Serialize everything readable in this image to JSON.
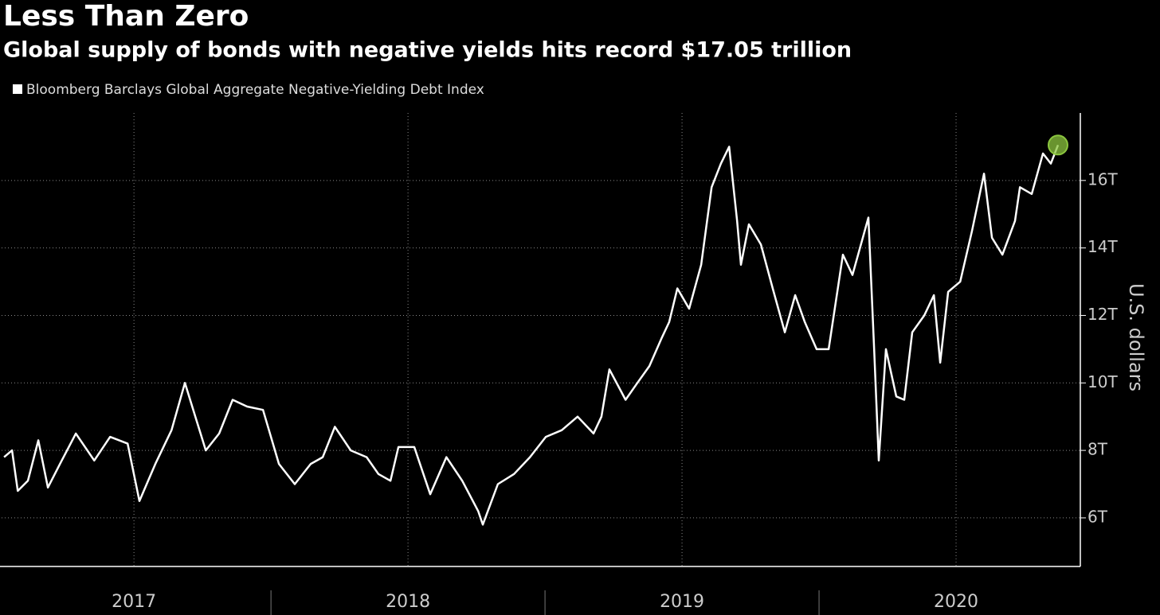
{
  "chart_data": {
    "type": "line",
    "title": "Less Than Zero",
    "subtitle": "Global supply of bonds with negative yields hits record $17.05 trillion",
    "y_label": "U.S. dollars",
    "x": [
      2017.026,
      2017.055,
      2017.076,
      2017.113,
      2017.151,
      2017.186,
      2017.23,
      2017.288,
      2017.355,
      2017.413,
      2017.477,
      2017.52,
      2017.578,
      2017.637,
      2017.686,
      2017.724,
      2017.762,
      2017.811,
      2017.86,
      2017.913,
      2017.971,
      2018.029,
      2018.087,
      2018.145,
      2018.189,
      2018.233,
      2018.291,
      2018.349,
      2018.392,
      2018.436,
      2018.465,
      2018.523,
      2018.581,
      2018.64,
      2018.698,
      2018.756,
      2018.773,
      2018.828,
      2018.887,
      2018.945,
      2019.003,
      2019.061,
      2019.119,
      2019.177,
      2019.206,
      2019.235,
      2019.294,
      2019.337,
      2019.381,
      2019.424,
      2019.453,
      2019.483,
      2019.526,
      2019.57,
      2019.608,
      2019.642,
      2019.672,
      2019.701,
      2019.715,
      2019.744,
      2019.788,
      2019.831,
      2019.875,
      2019.913,
      2019.948,
      2019.991,
      2020.035,
      2020.087,
      2020.122,
      2020.18,
      2020.201,
      2020.218,
      2020.244,
      2020.282,
      2020.311,
      2020.34,
      2020.384,
      2020.419,
      2020.442,
      2020.471,
      2020.515,
      2020.558,
      2020.602,
      2020.631,
      2020.669,
      2020.715,
      2020.733,
      2020.776,
      2020.817,
      2020.846,
      2020.872
    ],
    "series": [
      {
        "name": "Bloomberg Barclays Global Aggregate Negative-Yielding Debt Index",
        "color": "#ffffff",
        "values": [
          7.8,
          8.0,
          6.8,
          7.1,
          8.3,
          6.9,
          7.6,
          8.5,
          7.7,
          8.4,
          8.2,
          6.5,
          7.6,
          8.6,
          10.0,
          9.0,
          8.0,
          8.5,
          9.5,
          9.3,
          9.2,
          7.6,
          7.0,
          7.6,
          7.8,
          8.7,
          8.0,
          7.8,
          7.3,
          7.1,
          8.1,
          8.1,
          6.7,
          7.8,
          7.1,
          6.2,
          5.8,
          7.0,
          7.3,
          7.8,
          8.4,
          8.6,
          9.0,
          8.5,
          9.0,
          10.4,
          9.5,
          10.0,
          10.5,
          11.3,
          11.8,
          12.8,
          12.2,
          13.5,
          15.8,
          16.5,
          17.0,
          14.8,
          13.5,
          14.7,
          14.1,
          12.8,
          11.5,
          12.6,
          11.8,
          11.0,
          11.0,
          13.8,
          13.2,
          14.9,
          11.0,
          7.7,
          11.0,
          9.6,
          9.5,
          11.5,
          12.0,
          12.6,
          10.6,
          12.7,
          13.0,
          14.5,
          16.2,
          14.3,
          13.8,
          14.8,
          15.8,
          15.6,
          16.8,
          16.5,
          17.05
        ]
      }
    ],
    "highlight_color": "#8cc63f",
    "xlim": [
      2017.017,
      2020.936
    ],
    "xticks": [
      {
        "value": 2017.5,
        "label": "2017"
      },
      {
        "value": 2018.5,
        "label": "2018"
      },
      {
        "value": 2019.5,
        "label": "2019"
      },
      {
        "value": 2020.5,
        "label": "2020"
      }
    ],
    "ylim": [
      4.56,
      18
    ],
    "yticks": [
      {
        "value": 6,
        "label": "6T"
      },
      {
        "value": 8,
        "label": "8T"
      },
      {
        "value": 10,
        "label": "10T"
      },
      {
        "value": 12,
        "label": "12T"
      },
      {
        "value": 14,
        "label": "14T"
      },
      {
        "value": 16,
        "label": "16T"
      }
    ],
    "grid": true
  }
}
